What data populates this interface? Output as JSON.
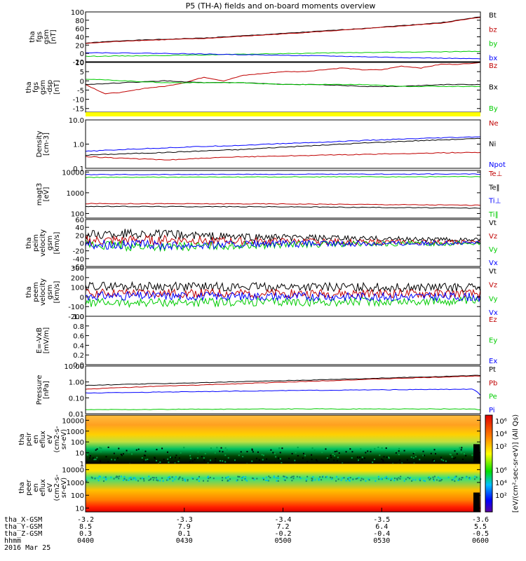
{
  "title": "P5 (TH-A) fields and on-board moments overview",
  "colors": {
    "black": "#000000",
    "red": "#c00000",
    "green": "#00cc00",
    "blue": "#0000ff",
    "yellow": "#ffff00"
  },
  "chart_data": [
    {
      "type": "line",
      "ylabel": [
        "tha",
        "fgs",
        "gsm",
        "[nT]"
      ],
      "ylim": [
        -20,
        100
      ],
      "yticks": [
        -20,
        0,
        20,
        40,
        60,
        80,
        100
      ],
      "series": [
        {
          "name": "Bt",
          "color": "#000000",
          "x": [
            0,
            0.1,
            0.3,
            0.5,
            0.7,
            0.9,
            1.0
          ],
          "values": [
            25,
            31,
            37,
            48,
            60,
            74,
            88
          ]
        },
        {
          "name": "bz",
          "color": "#c00000",
          "x": [
            0,
            0.1,
            0.3,
            0.5,
            0.7,
            0.9,
            1.0
          ],
          "values": [
            24,
            30,
            36,
            47,
            59,
            73,
            87
          ]
        },
        {
          "name": "by",
          "color": "#00cc00",
          "x": [
            0,
            0.2,
            0.4,
            0.6,
            0.8,
            1.0
          ],
          "values": [
            -7,
            -5,
            -2,
            1,
            3,
            5
          ]
        },
        {
          "name": "bx",
          "color": "#0000ff",
          "x": [
            0,
            0.2,
            0.4,
            0.6,
            0.8,
            1.0
          ],
          "values": [
            2,
            0,
            -3,
            -6,
            -10,
            -13
          ]
        }
      ]
    },
    {
      "type": "line",
      "ylabel": [
        "tha",
        "fgs",
        "gsm",
        "-dsp",
        "[nT]"
      ],
      "ylim": [
        -17,
        10
      ],
      "yticks": [
        -15,
        -10,
        -5,
        0,
        5,
        10
      ],
      "series": [
        {
          "name": "Bz",
          "color": "#c00000",
          "x": [
            0,
            0.05,
            0.1,
            0.15,
            0.2,
            0.25,
            0.3,
            0.35,
            0.4,
            0.45,
            0.5,
            0.55,
            0.6,
            0.65,
            0.7,
            0.75,
            0.8,
            0.85,
            0.9,
            0.95,
            1.0
          ],
          "values": [
            -2,
            -7,
            -6,
            -4,
            -3,
            -1,
            2,
            0,
            3,
            4,
            5,
            5,
            6,
            7,
            6,
            6,
            8,
            7,
            9,
            9,
            10
          ]
        },
        {
          "name": "Bx",
          "color": "#000000",
          "x": [
            0,
            0.1,
            0.2,
            0.3,
            0.4,
            0.5,
            0.6,
            0.7,
            0.8,
            0.9,
            1.0
          ],
          "values": [
            -2,
            -1,
            0,
            -1,
            -1,
            -2,
            -2,
            -3,
            -3,
            -2,
            -2
          ]
        },
        {
          "name": "By",
          "color": "#00cc00",
          "x": [
            0,
            0.1,
            0.2,
            0.3,
            0.4,
            0.5,
            0.6,
            0.7,
            0.8,
            0.9,
            1.0
          ],
          "values": [
            1,
            0,
            -1,
            -1,
            -1,
            -2,
            -2,
            -2,
            -3,
            -3,
            -3
          ]
        }
      ]
    },
    {
      "type": "bar",
      "ylabel": [],
      "series": [
        {
          "name": "",
          "color": "#ffff00",
          "values": [
            1
          ]
        }
      ]
    },
    {
      "type": "line",
      "log": true,
      "ylabel": [
        "Density",
        "[cm-3]"
      ],
      "ylim": [
        0.1,
        10
      ],
      "yticks": [
        0.1,
        1.0,
        10.0
      ],
      "ytick_labels": [
        "0.1",
        "1.0",
        "10.0"
      ],
      "series": [
        {
          "name": "Ne",
          "color": "#c00000",
          "x": [
            0,
            0.2,
            0.4,
            0.6,
            0.8,
            0.95,
            1.0
          ],
          "values": [
            0.3,
            0.22,
            0.3,
            0.35,
            0.4,
            0.45,
            0.45
          ]
        },
        {
          "name": "Ni",
          "color": "#000000",
          "x": [
            0,
            0.2,
            0.4,
            0.6,
            0.8,
            1.0
          ],
          "values": [
            0.35,
            0.45,
            0.6,
            0.9,
            1.3,
            1.7
          ]
        },
        {
          "name": "Npot",
          "color": "#0000ff",
          "x": [
            0,
            0.2,
            0.4,
            0.6,
            0.8,
            1.0
          ],
          "values": [
            0.5,
            0.7,
            0.9,
            1.2,
            1.6,
            2.0
          ]
        }
      ]
    },
    {
      "type": "line",
      "log": true,
      "ylabel": [
        "magt3",
        "[eV]"
      ],
      "ylim": [
        60,
        12000
      ],
      "yticks": [
        100,
        1000,
        10000
      ],
      "ytick_labels": [
        "100",
        "1000",
        "10000"
      ],
      "series": [
        {
          "name": "Te⊥",
          "color": "#c00000",
          "x": [
            0,
            0.5,
            1.0
          ],
          "values": [
            300,
            290,
            250
          ]
        },
        {
          "name": "Te‖",
          "color": "#000000",
          "x": [
            0,
            0.5,
            1.0
          ],
          "values": [
            220,
            210,
            180
          ]
        },
        {
          "name": "Ti⊥",
          "color": "#0000ff",
          "x": [
            0,
            0.5,
            1.0
          ],
          "values": [
            7500,
            7800,
            8000
          ]
        },
        {
          "name": "Ti‖",
          "color": "#00cc00",
          "x": [
            0,
            0.5,
            1.0
          ],
          "values": [
            5500,
            5800,
            6000
          ]
        }
      ]
    },
    {
      "type": "line",
      "ylabel": [
        "tha",
        "peim",
        "velocity",
        "gsm",
        "[km/s]"
      ],
      "ylim": [
        -60,
        60
      ],
      "yticks": [
        -60,
        -40,
        -20,
        0,
        20,
        40,
        60
      ],
      "series": [
        {
          "name": "Vt",
          "color": "#000000",
          "x": [
            0,
            0.1,
            0.2,
            0.3,
            0.4,
            0.6,
            0.8,
            1.0
          ],
          "values": [
            20,
            25,
            22,
            18,
            15,
            12,
            10,
            8
          ]
        },
        {
          "name": "Vz",
          "color": "#c00000",
          "x": [
            0,
            0.2,
            0.4,
            0.6,
            0.8,
            1.0
          ],
          "values": [
            5,
            8,
            4,
            3,
            2,
            2
          ]
        },
        {
          "name": "Vy",
          "color": "#00cc00",
          "x": [
            0,
            0.2,
            0.4,
            0.6,
            0.8,
            1.0
          ],
          "values": [
            -5,
            -10,
            -6,
            -3,
            -2,
            -1
          ]
        },
        {
          "name": "Vx",
          "color": "#0000ff",
          "x": [
            0,
            0.2,
            0.4,
            0.6,
            0.8,
            1.0
          ],
          "values": [
            -2,
            -6,
            -4,
            -2,
            -1,
            0
          ]
        }
      ]
    },
    {
      "type": "line",
      "ylabel": [
        "tha",
        "peem",
        "velocity",
        "gsm",
        "[km/s]"
      ],
      "ylim": [
        -200,
        300
      ],
      "yticks": [
        -200,
        -100,
        0,
        100,
        200,
        300
      ],
      "series": [
        {
          "name": "Vt",
          "color": "#000000",
          "x": [
            0,
            0.5,
            1.0
          ],
          "values": [
            110,
            105,
            95
          ]
        },
        {
          "name": "Vz",
          "color": "#c00000",
          "x": [
            0,
            0.5,
            1.0
          ],
          "values": [
            40,
            35,
            30
          ]
        },
        {
          "name": "Vy",
          "color": "#00cc00",
          "x": [
            0,
            0.5,
            1.0
          ],
          "values": [
            -60,
            -55,
            -45
          ]
        },
        {
          "name": "Vx",
          "color": "#0000ff",
          "x": [
            0,
            0.5,
            1.0
          ],
          "values": [
            10,
            5,
            0
          ]
        }
      ]
    },
    {
      "type": "line",
      "ylabel": [
        "E=-VxB",
        "[mV/m]"
      ],
      "ylim": [
        0,
        1
      ],
      "yticks": [
        0,
        0.2,
        0.4,
        0.6,
        0.8,
        1.0
      ],
      "ytick_labels": [
        "0.0",
        "0.2",
        "0.4",
        "0.6",
        "0.8",
        "1.0"
      ],
      "series": [
        {
          "name": "Ez",
          "color": "#c00000",
          "x": [],
          "values": []
        },
        {
          "name": "Ey",
          "color": "#00cc00",
          "x": [],
          "values": []
        },
        {
          "name": "Ex",
          "color": "#0000ff",
          "x": [],
          "values": []
        }
      ]
    },
    {
      "type": "line",
      "log": true,
      "ylabel": [
        "Pressure",
        "[nPa]"
      ],
      "ylim": [
        0.01,
        10
      ],
      "yticks": [
        0.01,
        0.1,
        1,
        10
      ],
      "ytick_labels": [
        "0.01",
        "0.10",
        "1.00",
        "10.00"
      ],
      "series": [
        {
          "name": "Pt",
          "color": "#000000",
          "x": [
            0,
            0.1,
            0.3,
            0.5,
            0.7,
            0.9,
            1.0
          ],
          "values": [
            0.6,
            0.7,
            0.9,
            1.2,
            1.6,
            2.2,
            2.6
          ]
        },
        {
          "name": "Pb",
          "color": "#c00000",
          "x": [
            0,
            0.1,
            0.3,
            0.5,
            0.7,
            0.9,
            1.0
          ],
          "values": [
            0.35,
            0.45,
            0.65,
            0.95,
            1.4,
            2.0,
            2.4
          ]
        },
        {
          "name": "Pe",
          "color": "#00cc00",
          "x": [
            0,
            0.5,
            0.98,
            1.0
          ],
          "values": [
            0.018,
            0.02,
            0.02,
            0.018
          ]
        },
        {
          "name": "Pi",
          "color": "#0000ff",
          "x": [
            0,
            0.3,
            0.6,
            0.98,
            1.0
          ],
          "values": [
            0.2,
            0.25,
            0.3,
            0.35,
            0.15
          ]
        }
      ]
    },
    {
      "type": "heatmap",
      "log": true,
      "ylabel": [
        "tha",
        "peir",
        "en",
        "eflux",
        "eV",
        "(cm2-s-",
        "sr-eV)"
      ],
      "ylim": [
        1,
        30000
      ],
      "yticks": [
        1,
        10,
        100,
        1000,
        10000
      ],
      "ytick_labels": [
        "1",
        "10",
        "100",
        "1000",
        "10000"
      ]
    },
    {
      "type": "heatmap",
      "log": true,
      "ylabel": [
        "tha",
        "peer",
        "en",
        "eflux",
        "eV",
        "(cm2-s-",
        "sr-eV)"
      ],
      "ylim": [
        5,
        30000
      ],
      "yticks": [
        10,
        100,
        1000,
        10000
      ],
      "ytick_labels": [
        "10",
        "100",
        "1000",
        "10000"
      ]
    }
  ],
  "colorbar": {
    "label": "[eV/(cm²-sec-sr-eV)] (All Qs)",
    "ticks": [
      "10²",
      "10⁴",
      "10⁶"
    ]
  },
  "xaxis": {
    "rows": [
      {
        "label": "tha_X-GSM",
        "values": [
          "-3.2",
          "-3.3",
          "-3.4",
          "-3.5",
          "-3.6"
        ]
      },
      {
        "label": "tha_Y-GSM",
        "values": [
          "8.5",
          "7.9",
          "7.2",
          "6.4",
          "5.5"
        ]
      },
      {
        "label": "tha_Z-GSM",
        "values": [
          "0.3",
          "0.1",
          "-0.2",
          "-0.4",
          "-0.5"
        ]
      },
      {
        "label": "hhmm",
        "values": [
          "0400",
          "0430",
          "0500",
          "0530",
          "0600"
        ]
      }
    ],
    "date": "2016 Mar 25"
  }
}
